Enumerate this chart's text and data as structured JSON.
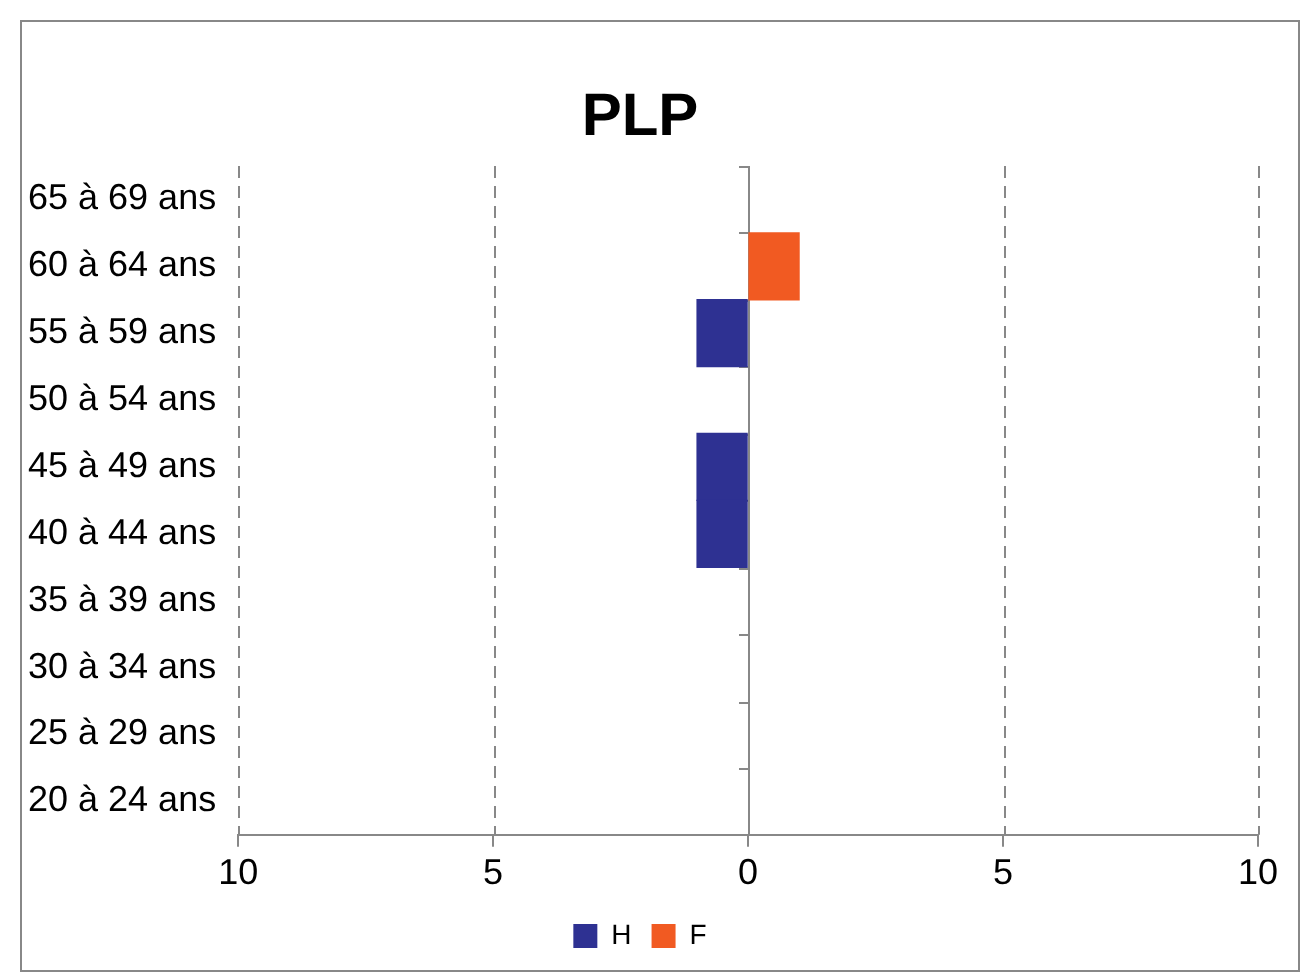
{
  "chart_data": {
    "type": "bar",
    "title": "PLP",
    "orientation": "horizontal",
    "stacked": true,
    "categories": [
      "65 à 69 ans",
      "60 à 64 ans",
      "55 à 59 ans",
      "50 à 54 ans",
      "45 à 49 ans",
      "40 à 44 ans",
      "35 à 39 ans",
      "30 à 34 ans",
      "25 à 29 ans",
      "20 à 24 ans"
    ],
    "series": [
      {
        "name": "H",
        "color": "#2e3192",
        "values": [
          0,
          0,
          -1,
          0,
          -1,
          -1,
          0,
          0,
          0,
          0
        ]
      },
      {
        "name": "F",
        "color": "#f15a22",
        "values": [
          0,
          1,
          0,
          0,
          0,
          0,
          0,
          0,
          0,
          0
        ]
      }
    ],
    "xlim": [
      -10,
      10
    ],
    "xticks": [
      {
        "value": -10,
        "label": "10"
      },
      {
        "value": -5,
        "label": "5"
      },
      0,
      5,
      10
    ],
    "grid": "x",
    "legend": "bottom"
  }
}
